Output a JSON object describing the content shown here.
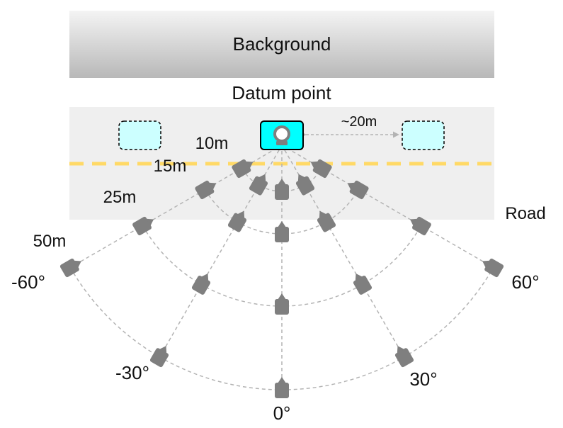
{
  "labels": {
    "background": "Background",
    "datum_point": "Datum point",
    "road": "Road",
    "spacing": "~20m"
  },
  "distances": [
    "10m",
    "15m",
    "25m",
    "50m"
  ],
  "angles": [
    "-60°",
    "-30°",
    "0°",
    "30°",
    "60°"
  ],
  "colors": {
    "lane_line": "#ffd966",
    "camera": "#7f7f7f",
    "datum_fill": "#00ffff",
    "vehicle_fill": "#ccffff",
    "guide_line": "#b3b3b3"
  },
  "icons": [
    "camera-icon",
    "datum-camera-icon"
  ]
}
